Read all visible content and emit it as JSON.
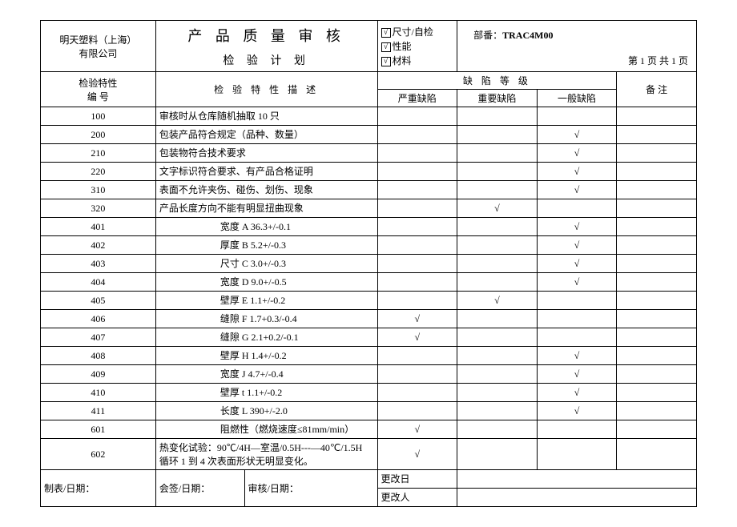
{
  "header": {
    "company": "明天塑料（上海）\n有限公司",
    "title1": "产 品 质 量 审 核",
    "title2": "检 验 计 划",
    "check1": "尺寸/自检",
    "check2": "性能",
    "check3": "材料",
    "part_label": "部番：",
    "part_no": "TRAC4M00",
    "page": "第 1 页    共 1 页",
    "checkmark": "√"
  },
  "cols": {
    "id": "检验特性\n编    号",
    "desc": "检 验 特 性 描 述",
    "defect_group": "缺 陷 等 级",
    "d1": "严重缺陷",
    "d2": "重要缺陷",
    "d3": "一般缺陷",
    "note": "备       注"
  },
  "rows": [
    {
      "id": "100",
      "desc": "审核时从仓库随机抽取 10 只",
      "align": "left",
      "d1": "",
      "d2": "",
      "d3": ""
    },
    {
      "id": "200",
      "desc": "包装产品符合规定（品种、数量）",
      "align": "left",
      "d1": "",
      "d2": "",
      "d3": "√"
    },
    {
      "id": "210",
      "desc": "包装物符合技术要求",
      "align": "left",
      "d1": "",
      "d2": "",
      "d3": "√"
    },
    {
      "id": "220",
      "desc": "文字标识符合要求、有产品合格证明",
      "align": "left",
      "d1": "",
      "d2": "",
      "d3": "√"
    },
    {
      "id": "310",
      "desc": "表面不允许夹伤、碰伤、划伤、现象",
      "align": "left",
      "d1": "",
      "d2": "",
      "d3": "√"
    },
    {
      "id": "320",
      "desc": "产品长度方向不能有明显扭曲现象",
      "align": "left",
      "d1": "",
      "d2": "√",
      "d3": ""
    },
    {
      "id": "401",
      "desc": "宽度 A    36.3+/-0.1",
      "align": "pad",
      "d1": "",
      "d2": "",
      "d3": "√"
    },
    {
      "id": "402",
      "desc": "厚度 B    5.2+/-0.3",
      "align": "pad",
      "d1": "",
      "d2": "",
      "d3": "√"
    },
    {
      "id": "403",
      "desc": "尺寸 C    3.0+/-0.3",
      "align": "pad",
      "d1": "",
      "d2": "",
      "d3": "√"
    },
    {
      "id": "404",
      "desc": "宽度 D    9.0+/-0.5",
      "align": "pad",
      "d1": "",
      "d2": "",
      "d3": "√"
    },
    {
      "id": "405",
      "desc": "壁厚 E    1.1+/-0.2",
      "align": "pad",
      "d1": "",
      "d2": "√",
      "d3": ""
    },
    {
      "id": "406",
      "desc": "缝隙 F    1.7+0.3/-0.4",
      "align": "pad",
      "d1": "√",
      "d2": "",
      "d3": ""
    },
    {
      "id": "407",
      "desc": "缝隙 G    2.1+0.2/-0.1",
      "align": "pad",
      "d1": "√",
      "d2": "",
      "d3": ""
    },
    {
      "id": "408",
      "desc": "壁厚 H    1.4+/-0.2",
      "align": "pad",
      "d1": "",
      "d2": "",
      "d3": "√"
    },
    {
      "id": "409",
      "desc": "宽度 J    4.7+/-0.4",
      "align": "pad",
      "d1": "",
      "d2": "",
      "d3": "√"
    },
    {
      "id": "410",
      "desc": "壁厚 t    1.1+/-0.2",
      "align": "pad",
      "d1": "",
      "d2": "",
      "d3": "√"
    },
    {
      "id": "411",
      "desc": "长度 L    390+/-2.0",
      "align": "pad",
      "d1": "",
      "d2": "",
      "d3": "√"
    },
    {
      "id": "601",
      "desc": "阻燃性（燃烧速度≤81mm/min）",
      "align": "pad",
      "d1": "√",
      "d2": "",
      "d3": ""
    },
    {
      "id": "602",
      "desc": "热变化试验：90℃/4H—室温/0.5H---—40℃/1.5H 循环 1 到 4 次表面形状无明显变化。",
      "align": "left",
      "d1": "√",
      "d2": "",
      "d3": "",
      "tall": true
    }
  ],
  "footer": {
    "l1": "制表/日期：",
    "l2": "会签/日期：",
    "l3": "审核/日期：",
    "r1": "更改日",
    "r2": "更改人"
  }
}
